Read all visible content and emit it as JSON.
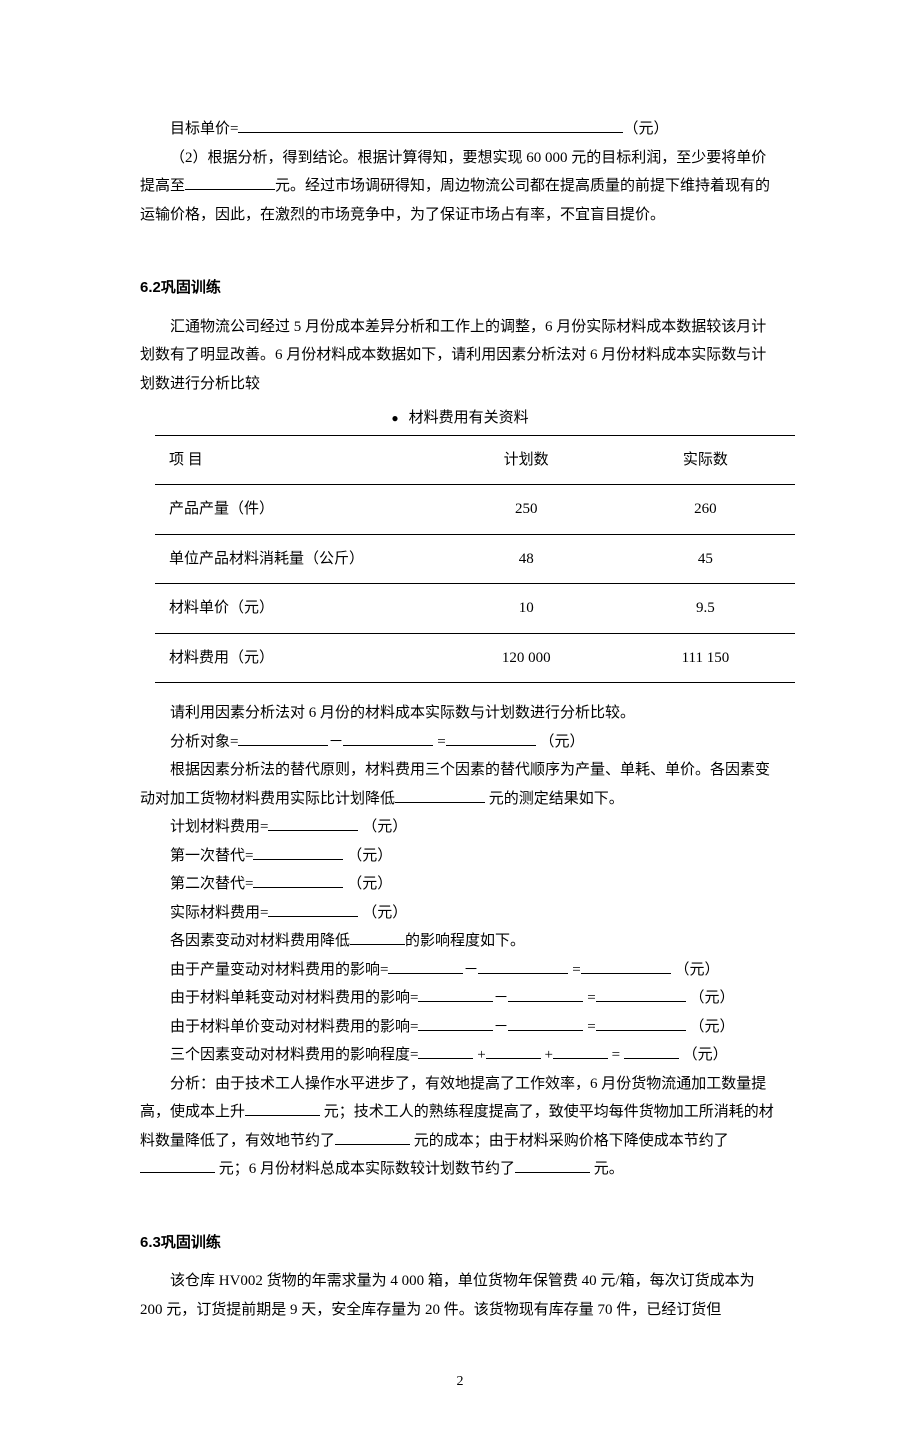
{
  "para1": {
    "label_prefix": "目标单价=",
    "unit": "（元）"
  },
  "para2": "（2）根据分析，得到结论。根据计算得知，要想实现 60 000 元的目标利润，至少要将单价提高至",
  "para2b": "元。经过市场调研得知，周边物流公司都在提高质量的前提下维持着现有的运输价格，因此，在激烈的市场竞争中，为了保证市场占有率，不宜盲目提价。",
  "section62": "6.2巩固训练",
  "intro62": "汇通物流公司经过 5 月份成本差异分析和工作上的调整，6 月份实际材料成本数据较该月计划数有了明显改善。6 月份材料成本数据如下，请利用因素分析法对 6 月份材料成本实际数与计划数进行分析比较",
  "table": {
    "title": "材料费用有关资料",
    "columns": [
      "项 目",
      "计划数",
      "实际数"
    ],
    "rows": [
      [
        "产品产量（件）",
        "250",
        "260"
      ],
      [
        "单位产品材料消耗量（公斤）",
        "48",
        "45"
      ],
      [
        "材料单价（元）",
        "10",
        "9.5"
      ],
      [
        "材料费用（元）",
        "120 000",
        "111 150"
      ]
    ]
  },
  "q1": "请利用因素分析法对 6 月份的材料成本实际数与计划数进行分析比较。",
  "q2": {
    "prefix": "分析对象=",
    "unit": "（元）"
  },
  "q3a": "根据因素分析法的替代原则，材料费用三个因素的替代顺序为产量、单耗、单价。各因素变动对加工货物材料费用实际比计划降低",
  "q3b": " 元的测定结果如下。",
  "lines": {
    "l1": "计划材料费用=",
    "l2": "第一次替代=",
    "l3": "第二次替代=",
    "l4": "实际材料费用=",
    "l5": "各因素变动对材料费用降低",
    "l5b": "的影响程度如下。",
    "l6": "由于产量变动对材料费用的影响=",
    "l7": "由于材料单耗变动对材料费用的影响=",
    "l8": "由于材料单价变动对材料费用的影响=",
    "l9": "三个因素变动对材料费用的影响程度=",
    "yuan": "（元）"
  },
  "analysis": {
    "a1": "分析：由于技术工人操作水平进步了，有效地提高了工作效率，6 月份货物流通加工数量提高，使成本上升",
    "a2": " 元；技术工人的熟练程度提高了，致使平均每件货物加工所消耗的材料数量降低了，有效地节约了",
    "a3": " 元的成本；由于材料采购价格下降使成本节约了",
    "a4": " 元；6 月份材料总成本实际数较计划数节约了",
    "a5": " 元。"
  },
  "section63": "6.3巩固训练",
  "intro63": "该仓库 HV002 货物的年需求量为 4 000 箱，单位货物年保管费 40 元/箱，每次订货成本为 200 元，订货提前期是 9 天，安全库存量为 20 件。该货物现有库存量 70 件，已经订货但",
  "page_num": "2"
}
